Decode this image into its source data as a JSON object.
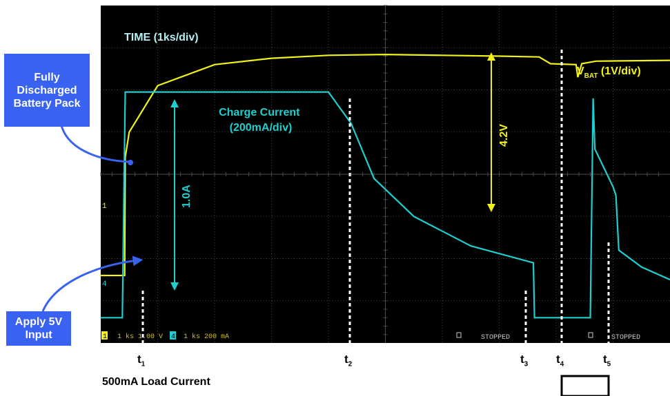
{
  "colors": {
    "screen": "#000000",
    "grid": "#4a4a4a",
    "vbat_trace": "#f2f21a",
    "current_trace": "#1fcfd0",
    "callout_bg": "#3a62f0",
    "status_text": "#d8c020"
  },
  "annotations": {
    "time_scale": "TIME (1ks/div)",
    "charge_current": [
      "Charge Current",
      "(200mA/div)"
    ],
    "vbat_main": "V",
    "vbat_sub": "BAT",
    "vbat_scale": " (1V/div)",
    "current_arrow": "1.0A",
    "voltage_arrow": "4.2V",
    "ch1_marker": "1",
    "ch4_marker": "4"
  },
  "status_bar": {
    "ch1": "1",
    "ch1_settings": "1 ks 1.00 V",
    "ch4": "4",
    "ch4_settings": "1 ks 200 mA",
    "stopped_1": "STOPPED",
    "stopped_2": "STOPPED"
  },
  "callouts": {
    "battery": "Fully Discharged Battery Pack",
    "input": "Apply 5V Input"
  },
  "time_markers": [
    {
      "main": "t",
      "sub": "1"
    },
    {
      "main": "t",
      "sub": "2"
    },
    {
      "main": "t",
      "sub": "3"
    },
    {
      "main": "t",
      "sub": "4"
    },
    {
      "main": "t",
      "sub": "5"
    }
  ],
  "load_current_label": "500mA Load Current",
  "chart_data": {
    "type": "line",
    "x_divisions": 10,
    "y_divisions": 8,
    "series": [
      {
        "name": "VBAT",
        "unit_per_div": "1V",
        "points": [
          [
            0.0,
            -2.4
          ],
          [
            0.42,
            -2.4
          ],
          [
            0.43,
            0.4
          ],
          [
            0.5,
            1.0
          ],
          [
            1.0,
            2.1
          ],
          [
            2.0,
            2.6
          ],
          [
            3.0,
            2.75
          ],
          [
            4.0,
            2.82
          ],
          [
            5.0,
            2.84
          ],
          [
            6.0,
            2.82
          ],
          [
            7.0,
            2.8
          ],
          [
            7.7,
            2.78
          ],
          [
            7.9,
            2.62
          ],
          [
            8.35,
            2.6
          ],
          [
            8.38,
            2.3
          ],
          [
            8.45,
            2.62
          ],
          [
            8.7,
            2.68
          ],
          [
            10.0,
            2.7
          ]
        ]
      },
      {
        "name": "Charge Current",
        "unit_per_div": "200mA",
        "points": [
          [
            0.0,
            -3.4
          ],
          [
            0.38,
            -3.4
          ],
          [
            0.43,
            1.95
          ],
          [
            4.0,
            1.95
          ],
          [
            4.4,
            1.2
          ],
          [
            4.8,
            -0.1
          ],
          [
            5.5,
            -1.0
          ],
          [
            6.5,
            -1.7
          ],
          [
            7.6,
            -2.1
          ],
          [
            7.62,
            -3.4
          ],
          [
            8.6,
            -3.4
          ],
          [
            8.65,
            1.8
          ],
          [
            8.68,
            0.6
          ],
          [
            9.0,
            -0.3
          ],
          [
            9.05,
            -0.5
          ],
          [
            9.1,
            -1.8
          ],
          [
            9.5,
            -2.2
          ],
          [
            10.0,
            -2.5
          ]
        ]
      }
    ]
  }
}
